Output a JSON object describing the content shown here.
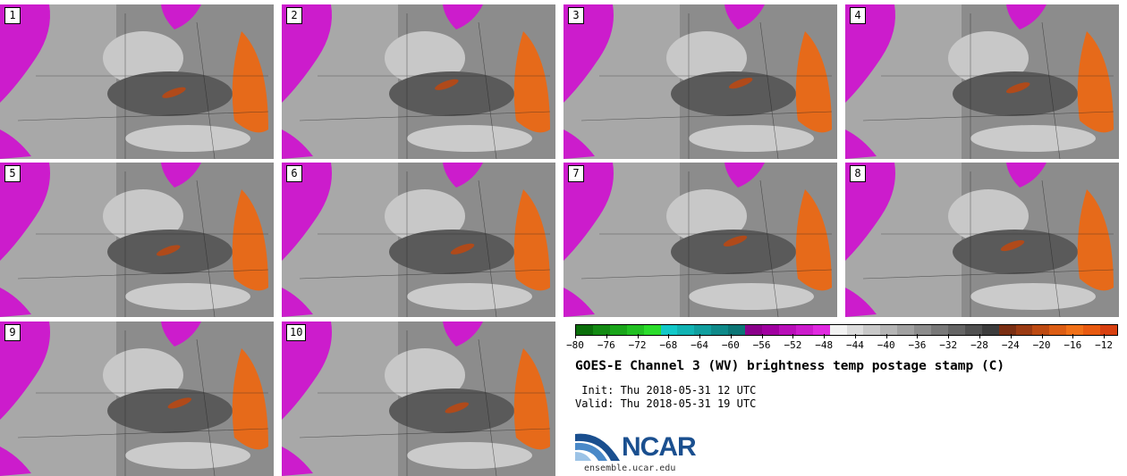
{
  "panels": [
    {
      "label": "1"
    },
    {
      "label": "2"
    },
    {
      "label": "3"
    },
    {
      "label": "4"
    },
    {
      "label": "5"
    },
    {
      "label": "6"
    },
    {
      "label": "7"
    },
    {
      "label": "8"
    },
    {
      "label": "9"
    },
    {
      "label": "10"
    }
  ],
  "colorbar": {
    "colors": [
      "#0a6e0a",
      "#138a13",
      "#1aa51a",
      "#22c022",
      "#2bdc2b",
      "#12c8c8",
      "#11b3b3",
      "#109e9e",
      "#0e8989",
      "#0b7575",
      "#8a008a",
      "#a000a0",
      "#b80fb8",
      "#cc1ccc",
      "#e02ae0",
      "#f2f2f2",
      "#dcdcdc",
      "#c8c8c8",
      "#b4b4b4",
      "#a0a0a0",
      "#8c8c8c",
      "#787878",
      "#646464",
      "#505050",
      "#3c3c3c",
      "#7a2e12",
      "#9a3a12",
      "#bd4a12",
      "#dc5d14",
      "#f07018",
      "#e85a10",
      "#d84010"
    ],
    "tick_labels": [
      "−80",
      "−76",
      "−72",
      "−68",
      "−64",
      "−60",
      "−56",
      "−52",
      "−48",
      "−44",
      "−40",
      "−36",
      "−32",
      "−28",
      "−24",
      "−20",
      "−16",
      "−12"
    ]
  },
  "title": "GOES-E Channel 3 (WV) brightness temp postage stamp (C)",
  "init": " Init: Thu 2018-05-31 12 UTC",
  "valid": "Valid: Thu 2018-05-31 19 UTC",
  "logo": {
    "text": "NCAR",
    "url": "ensemble.ucar.edu"
  }
}
